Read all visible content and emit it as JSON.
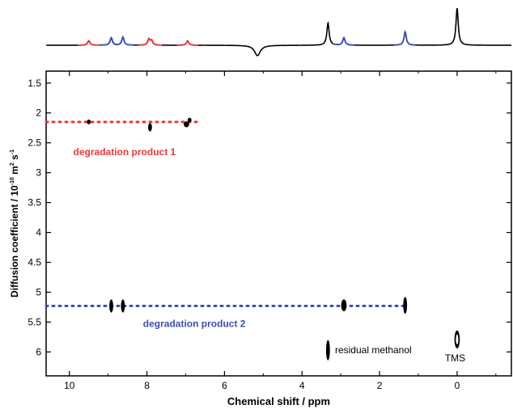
{
  "chart_data": {
    "type": "scatter",
    "subtype": "2D DOSY NMR spectrum",
    "xlabel": "Chemical shift / ppm",
    "ylabel_parts": {
      "main": "Diffusion coefficient / 10",
      "exp": "-10",
      "unit_m": " m",
      "exp2": "2",
      "unit_s": " s",
      "exp3": "-1"
    },
    "x_reversed": true,
    "xlim": [
      10.6,
      -1.4
    ],
    "ylim": [
      1.3,
      6.4
    ],
    "y_reversed": true,
    "xticks": [
      {
        "value": 10,
        "label": "10"
      },
      {
        "value": 8,
        "label": "8"
      },
      {
        "value": 6,
        "label": "6"
      },
      {
        "value": 4,
        "label": "4"
      },
      {
        "value": 2,
        "label": "2"
      },
      {
        "value": 0,
        "label": "0"
      }
    ],
    "yticks": [
      {
        "value": 1.5,
        "label": "1.5"
      },
      {
        "value": 2,
        "label": "2"
      },
      {
        "value": 2.5,
        "label": "2.5"
      },
      {
        "value": 3,
        "label": "3"
      },
      {
        "value": 3.5,
        "label": "3.5"
      },
      {
        "value": 4,
        "label": "4"
      },
      {
        "value": 4.5,
        "label": "4.5"
      },
      {
        "value": 5,
        "label": "5"
      },
      {
        "value": 5.5,
        "label": "5.5"
      },
      {
        "value": 6,
        "label": "6"
      }
    ],
    "colors": {
      "product1": "#e8383a",
      "product2": "#3a4fb4",
      "black": "#000000"
    },
    "series": [
      {
        "name": "degradation product 1",
        "color": "#e8383a",
        "level_D": 2.15,
        "line_x": [
          10.6,
          6.7
        ],
        "points": [
          {
            "x": 9.5,
            "y": 2.15,
            "rx": 0.05,
            "ry": 0.04
          },
          {
            "x": 7.92,
            "y": 2.24,
            "rx": 0.05,
            "ry": 0.07
          },
          {
            "x": 6.98,
            "y": 2.19,
            "rx": 0.07,
            "ry": 0.05
          },
          {
            "x": 6.9,
            "y": 2.12,
            "rx": 0.05,
            "ry": 0.04
          }
        ]
      },
      {
        "name": "degradation product 2",
        "color": "#3a4fb4",
        "level_D": 5.23,
        "line_x": [
          10.6,
          1.3
        ],
        "points": [
          {
            "x": 8.92,
            "y": 5.23,
            "rx": 0.05,
            "ry": 0.11
          },
          {
            "x": 8.62,
            "y": 5.23,
            "rx": 0.05,
            "ry": 0.11
          },
          {
            "x": 2.92,
            "y": 5.22,
            "rx": 0.07,
            "ry": 0.1
          },
          {
            "x": 1.34,
            "y": 5.22,
            "rx": 0.05,
            "ry": 0.14
          }
        ]
      }
    ],
    "other_peaks": [
      {
        "name": "residual methanol",
        "x": 3.33,
        "y": 5.97,
        "rx": 0.05,
        "ry": 0.17,
        "ring": false
      },
      {
        "name": "TMS",
        "x": 0.0,
        "y": 5.79,
        "rx": 0.07,
        "ry": 0.15,
        "ring": true
      }
    ],
    "annotations": [
      {
        "text": "degradation product 1",
        "color": "#e8383a",
        "x": 9.9,
        "y": 2.65
      },
      {
        "text": "degradation product 2",
        "color": "#3a4fb4",
        "x": 8.1,
        "y": 5.53
      },
      {
        "text": "residual methanol",
        "color": "#000000",
        "x": 3.15,
        "y": 5.97
      },
      {
        "text": "TMS",
        "color": "#000000",
        "x": 0.05,
        "y": 6.1
      }
    ],
    "projection_1d": {
      "description": "1H projection spectrum",
      "peaks": [
        {
          "ppm": 9.5,
          "height": 0.12,
          "color": "#e8383a"
        },
        {
          "ppm": 8.92,
          "height": 0.2,
          "color": "#3a4fb4"
        },
        {
          "ppm": 8.62,
          "height": 0.22,
          "color": "#3a4fb4"
        },
        {
          "ppm": 7.95,
          "height": 0.16,
          "color": "#e8383a"
        },
        {
          "ppm": 7.88,
          "height": 0.12,
          "color": "#e8383a"
        },
        {
          "ppm": 6.95,
          "height": 0.12,
          "color": "#e8383a"
        },
        {
          "ppm": 5.15,
          "height": -0.28,
          "color": "#000000"
        },
        {
          "ppm": 3.33,
          "height": 0.6,
          "color": "#000000"
        },
        {
          "ppm": 2.92,
          "height": 0.2,
          "color": "#3a4fb4"
        },
        {
          "ppm": 1.34,
          "height": 0.36,
          "color": "#3a4fb4"
        },
        {
          "ppm": 0.0,
          "height": 1.0,
          "color": "#000000"
        }
      ]
    }
  }
}
